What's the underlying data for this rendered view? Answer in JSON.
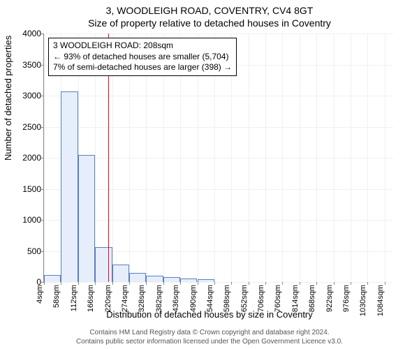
{
  "title": "3, WOODLEIGH ROAD, COVENTRY, CV4 8GT",
  "subtitle": "Size of property relative to detached houses in Coventry",
  "ylabel": "Number of detached properties",
  "xlabel": "Distribution of detached houses by size in Coventry",
  "footer1": "Contains HM Land Registry data © Crown copyright and database right 2024.",
  "footer2": "Contains public sector information licensed under the Open Government Licence v3.0.",
  "chart": {
    "type": "bar",
    "ylim": [
      0,
      4000
    ],
    "ytick_step": 500,
    "yticks": [
      0,
      500,
      1000,
      1500,
      2000,
      2500,
      3000,
      3500,
      4000
    ],
    "xticks": [
      "4sqm",
      "58sqm",
      "112sqm",
      "166sqm",
      "220sqm",
      "274sqm",
      "328sqm",
      "382sqm",
      "436sqm",
      "490sqm",
      "544sqm",
      "598sqm",
      "652sqm",
      "706sqm",
      "760sqm",
      "814sqm",
      "868sqm",
      "922sqm",
      "976sqm",
      "1030sqm",
      "1084sqm"
    ],
    "bars": [
      110,
      3070,
      2040,
      560,
      280,
      150,
      105,
      75,
      55,
      50,
      0,
      0,
      0,
      0,
      0,
      0,
      0,
      0,
      0,
      0,
      0
    ],
    "bar_fill": "#e6eefb",
    "bar_stroke": "#5a7fbf",
    "grid_color": "#f0f0f0",
    "background_color": "#ffffff",
    "marker_color": "#ff0000",
    "marker_x_sqm": 208,
    "x_domain": [
      4,
      1111
    ],
    "bar_bin_width_sqm": 54
  },
  "annotation": {
    "line1": "3 WOODLEIGH ROAD: 208sqm",
    "line2": "← 93% of detached houses are smaller (5,704)",
    "line3": "7% of semi-detached houses are larger (398) →"
  }
}
